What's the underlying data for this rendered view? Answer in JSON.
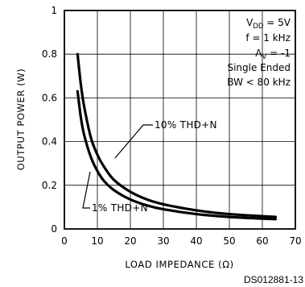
{
  "chart_data": {
    "type": "line",
    "xlabel": "LOAD IMPEDANCE (Ω)",
    "ylabel": "OUTPUT POWER (W)",
    "xlim": [
      0,
      70
    ],
    "ylim": [
      0,
      1
    ],
    "x_ticks": [
      "0",
      "10",
      "20",
      "30",
      "40",
      "50",
      "60",
      "70"
    ],
    "y_ticks": [
      "0",
      "0.2",
      "0.4",
      "0.6",
      "0.8",
      "1"
    ],
    "grid": true,
    "series": [
      {
        "name": "10% THD+N",
        "x": [
          4,
          5,
          6,
          8,
          10,
          12,
          15,
          20,
          25,
          30,
          40,
          50,
          64
        ],
        "y": [
          0.8,
          0.66,
          0.56,
          0.42,
          0.34,
          0.285,
          0.225,
          0.17,
          0.135,
          0.113,
          0.085,
          0.068,
          0.055
        ]
      },
      {
        "name": "1% THD+N",
        "x": [
          4,
          5,
          6,
          8,
          10,
          12,
          15,
          20,
          25,
          30,
          40,
          50,
          64
        ],
        "y": [
          0.63,
          0.51,
          0.43,
          0.33,
          0.265,
          0.22,
          0.178,
          0.135,
          0.108,
          0.09,
          0.068,
          0.055,
          0.045
        ]
      }
    ],
    "conditions": {
      "vdd_main": "V",
      "vdd_sub": "DD",
      "vdd_value": " = 5V",
      "freq": "f = 1 kHz",
      "av_main": "A",
      "av_sub": "V",
      "av_value": " = -1",
      "mode": "Single Ended",
      "bw": "BW < 80 kHz"
    },
    "label_10": "10% THD+N",
    "label_1": "1% THD+N"
  },
  "footer": {
    "code": "DS012881-13"
  }
}
